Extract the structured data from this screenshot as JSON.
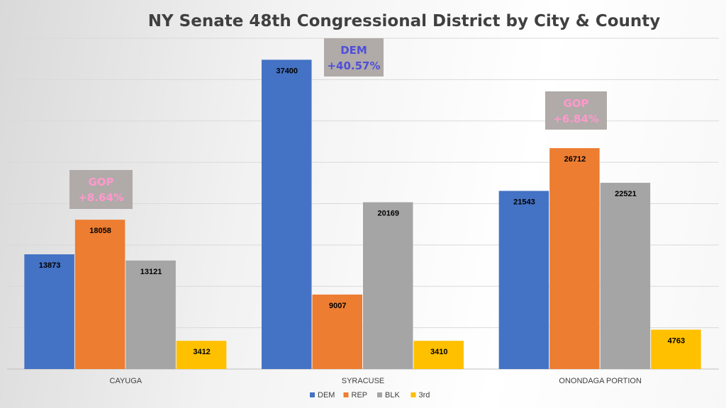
{
  "chart_data": {
    "type": "bar",
    "title": "NY Senate 48th Congressional District by City & County",
    "categories": [
      "CAYUGA",
      "SYRACUSE",
      "ONONDAGA PORTION"
    ],
    "series": [
      {
        "name": "DEM",
        "color": "#4472c4",
        "values": [
          13873,
          37400,
          21543
        ]
      },
      {
        "name": "REP",
        "color": "#ed7d31",
        "values": [
          18058,
          9007,
          26712
        ]
      },
      {
        "name": "BLK",
        "color": "#a5a5a5",
        "values": [
          13121,
          20169,
          22521
        ]
      },
      {
        "name": "3rd",
        "color": "#ffc000",
        "values": [
          3412,
          3410,
          4763
        ]
      }
    ],
    "ylim": [
      0,
      40000
    ],
    "grid_step": 5000,
    "grid": true,
    "legend": "bottom",
    "xlabel": "",
    "ylabel": "",
    "annotations": [
      {
        "category": "CAYUGA",
        "line1": "GOP",
        "line2": "+8.64%",
        "color": "#ff99cc"
      },
      {
        "category": "SYRACUSE",
        "line1": "DEM",
        "line2": "+40.57%",
        "color": "#4f4fd9"
      },
      {
        "category": "ONONDAGA PORTION",
        "line1": "GOP",
        "line2": "+6.84%",
        "color": "#ff99cc"
      }
    ]
  }
}
